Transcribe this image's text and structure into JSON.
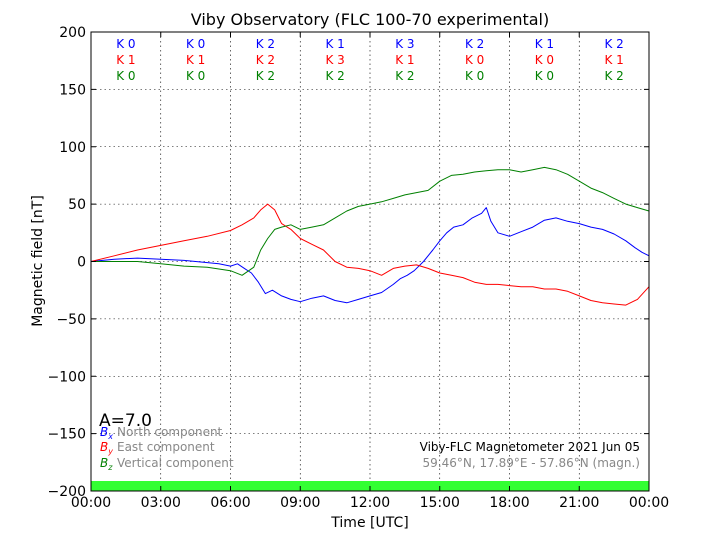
{
  "chart_data": {
    "type": "line",
    "title": "Viby Observatory (FLC 100-70 experimental)",
    "xlabel": "Time [UTC]",
    "ylabel": "Magnetic field [nT]",
    "ylim": [
      -200,
      200
    ],
    "xlim": [
      0,
      24
    ],
    "xticks": [
      0,
      3,
      6,
      9,
      12,
      15,
      18,
      21,
      24
    ],
    "xtick_labels": [
      "00:00",
      "03:00",
      "06:00",
      "09:00",
      "12:00",
      "15:00",
      "18:00",
      "21:00",
      "00:00"
    ],
    "yticks": [
      -200,
      -150,
      -100,
      -50,
      0,
      50,
      100,
      150,
      200
    ],
    "ytick_labels": [
      "−200",
      "−150",
      "−100",
      "−50",
      "0",
      "50",
      "100",
      "150",
      "200"
    ],
    "grid": true,
    "k_indices": {
      "rows": [
        {
          "name": "North",
          "color": "#0000ff",
          "labels": [
            "K 0",
            "K 0",
            "K 2",
            "K 1",
            "K 3",
            "K 2",
            "K 1",
            "K 2"
          ]
        },
        {
          "name": "East",
          "color": "#ff0000",
          "labels": [
            "K 1",
            "K 1",
            "K 2",
            "K 3",
            "K 1",
            "K 0",
            "K 0",
            "K 1"
          ]
        },
        {
          "name": "Vertical",
          "color": "#008000",
          "labels": [
            "K 0",
            "K 0",
            "K 2",
            "K 2",
            "K 2",
            "K 0",
            "K 0",
            "K 2"
          ]
        }
      ]
    },
    "a_index": "A=7.0",
    "legend": [
      {
        "symbol": "B",
        "sub": "x",
        "label": "North component",
        "color": "#0000ff"
      },
      {
        "symbol": "B",
        "sub": "y",
        "label": "East component",
        "color": "#ff0000"
      },
      {
        "symbol": "B",
        "sub": "z",
        "label": "Vertical component",
        "color": "#008000"
      }
    ],
    "info_line1": "Viby-FLC Magnetometer 2021 Jun 05",
    "info_line2": "59.46°N, 17.89°E - 57.86°N (magn.)",
    "status_bar_color": "#33ff33",
    "series": [
      {
        "name": "North component",
        "color": "#0000ff",
        "x": [
          0,
          1,
          2,
          3,
          4,
          5,
          5.5,
          6,
          6.3,
          6.6,
          6.9,
          7.2,
          7.5,
          7.8,
          8.2,
          8.6,
          9,
          9.5,
          10,
          10.5,
          11,
          11.5,
          12,
          12.5,
          13,
          13.3,
          13.6,
          13.9,
          14.3,
          14.7,
          15,
          15.3,
          15.6,
          16,
          16.4,
          16.8,
          17,
          17.2,
          17.5,
          18,
          18.5,
          19,
          19.5,
          20,
          20.5,
          21,
          21.5,
          22,
          22.5,
          23,
          23.4,
          23.7,
          24
        ],
        "y": [
          0,
          2,
          3,
          2,
          1,
          -1,
          -2,
          -4,
          -2,
          -6,
          -10,
          -18,
          -28,
          -25,
          -30,
          -33,
          -35,
          -32,
          -30,
          -34,
          -36,
          -33,
          -30,
          -27,
          -20,
          -15,
          -12,
          -8,
          0,
          10,
          18,
          25,
          30,
          32,
          38,
          42,
          47,
          35,
          25,
          22,
          26,
          30,
          36,
          38,
          35,
          33,
          30,
          28,
          24,
          18,
          12,
          8,
          5
        ]
      },
      {
        "name": "East component",
        "color": "#ff0000",
        "x": [
          0,
          1,
          2,
          3,
          4,
          5,
          6,
          6.5,
          7,
          7.3,
          7.6,
          7.9,
          8.2,
          8.6,
          9,
          9.5,
          10,
          10.5,
          11,
          11.5,
          12,
          12.5,
          13,
          13.5,
          14,
          14.5,
          15,
          15.5,
          16,
          16.5,
          17,
          17.5,
          18,
          18.5,
          19,
          19.5,
          20,
          20.5,
          21,
          21.5,
          22,
          22.5,
          23,
          23.5,
          24
        ],
        "y": [
          0,
          5,
          10,
          14,
          18,
          22,
          27,
          32,
          38,
          45,
          50,
          45,
          33,
          28,
          20,
          15,
          10,
          0,
          -5,
          -6,
          -8,
          -12,
          -6,
          -4,
          -3,
          -6,
          -10,
          -12,
          -14,
          -18,
          -20,
          -20,
          -21,
          -22,
          -22,
          -24,
          -24,
          -26,
          -30,
          -34,
          -36,
          -37,
          -38,
          -33,
          -22
        ]
      },
      {
        "name": "Vertical component",
        "color": "#008000",
        "x": [
          0,
          1,
          2,
          3,
          4,
          5,
          6,
          6.5,
          7,
          7.3,
          7.6,
          7.9,
          8.2,
          8.6,
          9,
          9.5,
          10,
          10.5,
          11,
          11.5,
          12,
          12.5,
          13,
          13.5,
          14,
          14.5,
          15,
          15.5,
          16,
          16.5,
          17,
          17.5,
          18,
          18.5,
          19,
          19.5,
          20,
          20.5,
          21,
          21.5,
          22,
          22.5,
          23,
          23.5,
          24
        ],
        "y": [
          0,
          0,
          0,
          -2,
          -4,
          -5,
          -8,
          -12,
          -5,
          10,
          20,
          28,
          30,
          32,
          28,
          30,
          32,
          38,
          44,
          48,
          50,
          52,
          55,
          58,
          60,
          62,
          70,
          75,
          76,
          78,
          79,
          80,
          80,
          78,
          80,
          82,
          80,
          76,
          70,
          64,
          60,
          55,
          50,
          47,
          44
        ]
      }
    ]
  }
}
